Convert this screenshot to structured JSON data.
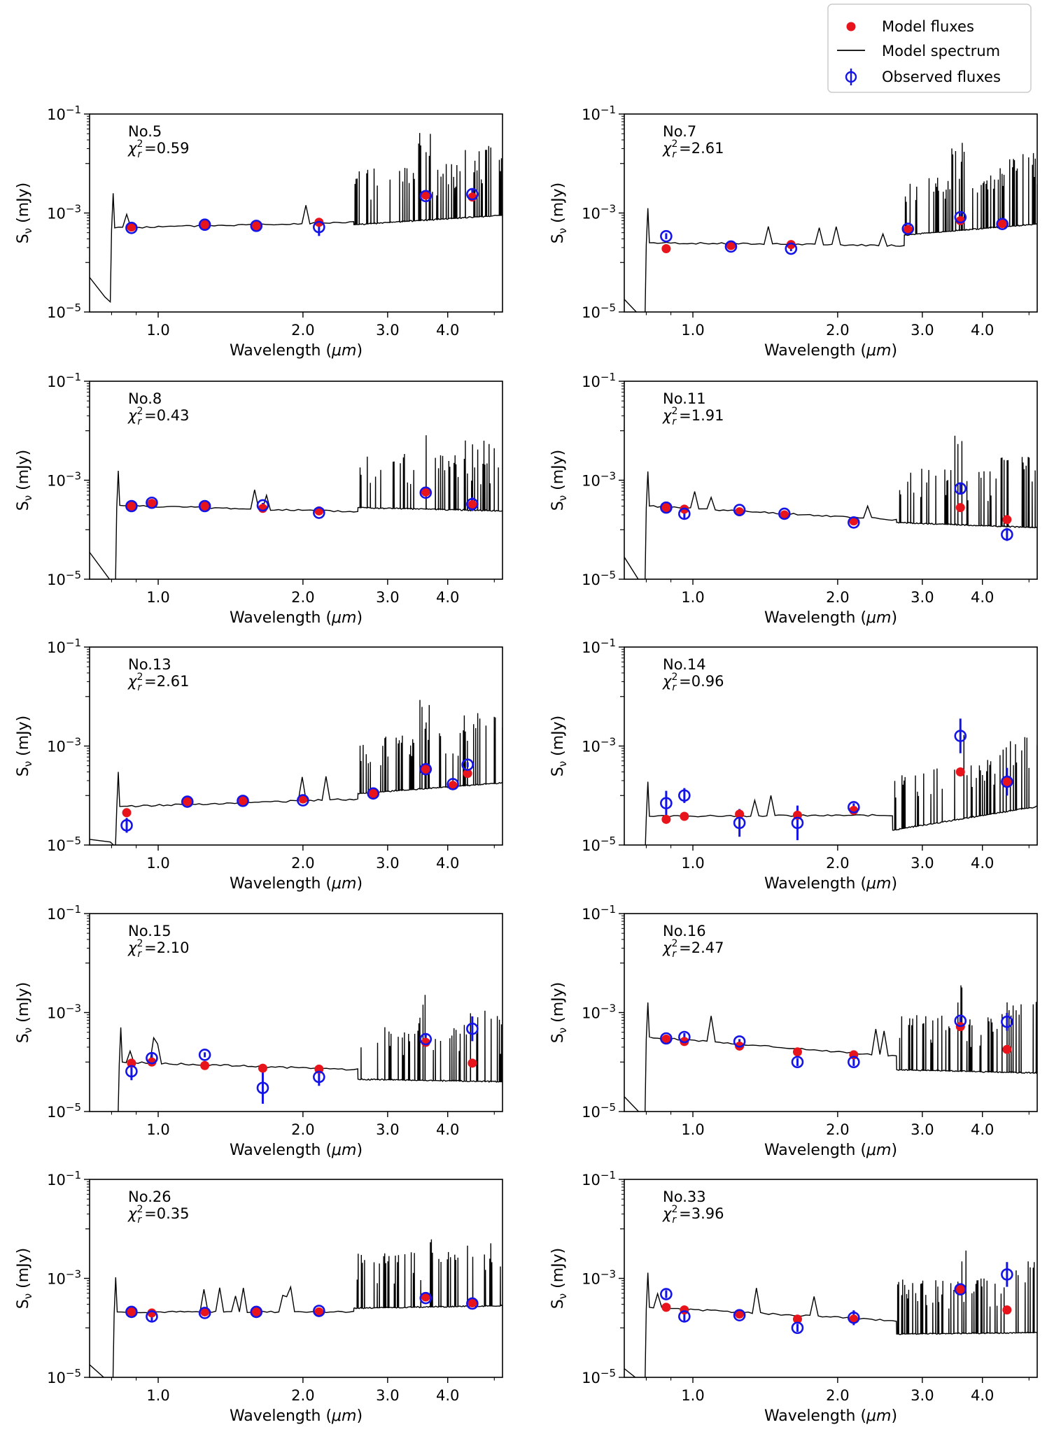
{
  "legend": {
    "entries": [
      "Model fluxes",
      "Model spectrum",
      "Observed fluxes"
    ],
    "position": "top-right"
  },
  "colors": {
    "model_flux": "#e8141c",
    "observed_flux": "#1414e6",
    "spectrum": "#000000"
  },
  "chart_data": [
    {
      "type": "scatter",
      "id": "No.5",
      "label": "No.5",
      "chi": "0.59",
      "xlabel": "Wavelength (μm)",
      "ylabel": "Sν (mJy)",
      "xscale": "log",
      "yscale": "log",
      "xlim": [
        0.72,
        5.2
      ],
      "ylim": [
        1e-05,
        0.1
      ],
      "xticks": [
        1.0,
        2.0,
        3.0,
        4.0
      ],
      "xticklabels": [
        "1.0",
        "2.0",
        "3.0",
        "4.0"
      ],
      "yticks": [
        1e-05,
        0.001,
        0.1
      ],
      "yticklabels_base": [
        "10",
        "10",
        "10"
      ],
      "yticklabels_exp": [
        "−5",
        "−3",
        "−1"
      ],
      "spectrum": {
        "break": 0.8,
        "v0": 0.0005,
        "v1": 0.00065,
        "j": 2.55,
        "v2": 0.00058,
        "v3": 0.0009,
        "tail": [
          5e-05,
          2e-05
        ],
        "spike_seed": 5
      },
      "model": [
        [
          0.88,
          0.00052
        ],
        [
          1.25,
          0.00058
        ],
        [
          1.6,
          0.00055
        ],
        [
          2.16,
          0.00065
        ],
        [
          3.6,
          0.0023
        ],
        [
          4.5,
          0.0021
        ]
      ],
      "observed": [
        [
          0.88,
          0.0005,
          0.05
        ],
        [
          1.25,
          0.00058,
          0.05
        ],
        [
          1.6,
          0.00055,
          0.05
        ],
        [
          2.16,
          0.00052,
          0.18
        ],
        [
          3.6,
          0.0022,
          0.06
        ],
        [
          4.5,
          0.0024,
          0.1
        ]
      ]
    },
    {
      "type": "scatter",
      "id": "No.7",
      "label": "No.7",
      "chi": "2.61",
      "xlabel": "Wavelength (μm)",
      "ylabel": "Sν (mJy)",
      "xscale": "log",
      "yscale": "log",
      "xlim": [
        0.72,
        5.2
      ],
      "ylim": [
        1e-05,
        0.1
      ],
      "xticks": [
        1.0,
        2.0,
        3.0,
        4.0
      ],
      "xticklabels": [
        "1.0",
        "2.0",
        "3.0",
        "4.0"
      ],
      "yticks": [
        1e-05,
        0.001,
        0.1
      ],
      "yticklabels_base": [
        "10",
        "10",
        "10"
      ],
      "yticklabels_exp": [
        "−5",
        "−3",
        "−1"
      ],
      "spectrum": {
        "break": 0.8,
        "v0": 0.00025,
        "v1": 0.00022,
        "j": 2.75,
        "v2": 0.00036,
        "v3": 0.0006,
        "tail": [
          1.8e-05,
          8.5e-06
        ],
        "spike_seed": 7
      },
      "model": [
        [
          0.88,
          0.00019
        ],
        [
          1.2,
          0.00022
        ],
        [
          1.6,
          0.00023
        ],
        [
          2.8,
          0.00046
        ],
        [
          3.6,
          0.0007
        ],
        [
          4.4,
          0.00061
        ]
      ],
      "observed": [
        [
          0.88,
          0.00034,
          0.06
        ],
        [
          1.2,
          0.00021,
          0.05
        ],
        [
          1.6,
          0.00019,
          0.05
        ],
        [
          2.8,
          0.00048,
          0.08
        ],
        [
          3.6,
          0.00082,
          0.08
        ],
        [
          4.4,
          0.0006,
          0.05
        ]
      ]
    },
    {
      "type": "scatter",
      "id": "No.8",
      "label": "No.8",
      "chi": "0.43",
      "xlabel": "Wavelength (μm)",
      "ylabel": "Sν (mJy)",
      "xscale": "log",
      "yscale": "log",
      "xlim": [
        0.72,
        5.2
      ],
      "ylim": [
        1e-05,
        0.1
      ],
      "xticks": [
        1.0,
        2.0,
        3.0,
        4.0
      ],
      "xticklabels": [
        "1.0",
        "2.0",
        "3.0",
        "4.0"
      ],
      "yticks": [
        1e-05,
        0.001,
        0.1
      ],
      "yticklabels_base": [
        "10",
        "10",
        "10"
      ],
      "yticklabels_exp": [
        "−5",
        "−3",
        "−1"
      ],
      "spectrum": {
        "break": 0.82,
        "v0": 0.00031,
        "v1": 0.00023,
        "j": 2.6,
        "v2": 0.00028,
        "v3": 0.00024,
        "tail": [
          3.5e-05,
          9.5e-06
        ],
        "spike_seed": 8
      },
      "model": [
        [
          0.88,
          0.0003
        ],
        [
          0.97,
          0.00034
        ],
        [
          1.25,
          0.0003
        ],
        [
          1.65,
          0.00027
        ],
        [
          2.16,
          0.00024
        ],
        [
          3.6,
          0.00058
        ],
        [
          4.5,
          0.00032
        ]
      ],
      "observed": [
        [
          0.88,
          0.0003,
          0.05
        ],
        [
          0.97,
          0.00035,
          0.05
        ],
        [
          1.25,
          0.0003,
          0.05
        ],
        [
          1.65,
          0.00031,
          0.05
        ],
        [
          2.16,
          0.00022,
          0.05
        ],
        [
          3.6,
          0.00056,
          0.05
        ],
        [
          4.5,
          0.00033,
          0.14
        ]
      ]
    },
    {
      "type": "scatter",
      "id": "No.11",
      "label": "No.11",
      "chi": "1.91",
      "xlabel": "Wavelength (μm)",
      "ylabel": "Sν (mJy)",
      "xscale": "log",
      "yscale": "log",
      "xlim": [
        0.72,
        5.2
      ],
      "ylim": [
        1e-05,
        0.1
      ],
      "xticks": [
        1.0,
        2.0,
        3.0,
        4.0
      ],
      "xticklabels": [
        "1.0",
        "2.0",
        "3.0",
        "4.0"
      ],
      "yticks": [
        1e-05,
        0.001,
        0.1
      ],
      "yticklabels_base": [
        "10",
        "10",
        "10"
      ],
      "yticklabels_exp": [
        "−5",
        "−3",
        "−1"
      ],
      "spectrum": {
        "break": 0.8,
        "v0": 0.0003,
        "v1": 0.00016,
        "j": 2.65,
        "v2": 0.00014,
        "v3": 0.00011,
        "tail": [
          2.8e-05,
          9e-06
        ],
        "spike_seed": 11
      },
      "model": [
        [
          0.88,
          0.00028
        ],
        [
          0.96,
          0.00026
        ],
        [
          1.25,
          0.00023
        ],
        [
          1.55,
          0.0002
        ],
        [
          2.16,
          0.00015
        ],
        [
          3.6,
          0.00028
        ],
        [
          4.5,
          0.00016
        ]
      ],
      "observed": [
        [
          0.88,
          0.00028,
          0.05
        ],
        [
          0.96,
          0.00021,
          0.12
        ],
        [
          1.25,
          0.00025,
          0.05
        ],
        [
          1.55,
          0.00021,
          0.05
        ],
        [
          2.16,
          0.00014,
          0.05
        ],
        [
          3.6,
          0.00068,
          0.1
        ],
        [
          4.5,
          8e-05,
          0.13
        ]
      ]
    },
    {
      "type": "scatter",
      "id": "No.13",
      "label": "No.13",
      "chi": "2.61",
      "xlabel": "Wavelength (μm)",
      "ylabel": "Sν (mJy)",
      "xscale": "log",
      "yscale": "log",
      "xlim": [
        0.72,
        5.2
      ],
      "ylim": [
        1e-05,
        0.1
      ],
      "xticks": [
        1.0,
        2.0,
        3.0,
        4.0
      ],
      "xticklabels": [
        "1.0",
        "2.0",
        "3.0",
        "4.0"
      ],
      "yticks": [
        1e-05,
        0.001,
        0.1
      ],
      "yticklabels_base": [
        "10",
        "10",
        "10"
      ],
      "yticklabels_exp": [
        "−5",
        "−3",
        "−1"
      ],
      "spectrum": {
        "break": 0.82,
        "v0": 6e-05,
        "v1": 8.5e-05,
        "j": 2.6,
        "v2": 0.00011,
        "v3": 0.00018,
        "tail": [
          1.3e-05,
          1.15e-05
        ],
        "spike_seed": 13
      },
      "model": [
        [
          0.86,
          4.5e-05
        ],
        [
          1.15,
          7.5e-05
        ],
        [
          1.5,
          7.8e-05
        ],
        [
          2.0,
          8.5e-05
        ],
        [
          2.8,
          0.00011
        ],
        [
          3.6,
          0.00034
        ],
        [
          4.1,
          0.00016
        ],
        [
          4.4,
          0.00028
        ]
      ],
      "observed": [
        [
          0.86,
          2.5e-05,
          0.15
        ],
        [
          1.15,
          7.5e-05,
          0.05
        ],
        [
          1.5,
          7.8e-05,
          0.05
        ],
        [
          2.0,
          8e-05,
          0.05
        ],
        [
          2.8,
          0.00011,
          0.05
        ],
        [
          3.6,
          0.00034,
          0.05
        ],
        [
          4.1,
          0.00017,
          0.05
        ],
        [
          4.4,
          0.00042,
          0.05
        ]
      ]
    },
    {
      "type": "scatter",
      "id": "No.14",
      "label": "No.14",
      "chi": "0.96",
      "xlabel": "Wavelength (μm)",
      "ylabel": "Sν (mJy)",
      "xscale": "log",
      "yscale": "log",
      "xlim": [
        0.72,
        5.2
      ],
      "ylim": [
        1e-05,
        0.1
      ],
      "xticks": [
        1.0,
        2.0,
        3.0,
        4.0
      ],
      "xticklabels": [
        "1.0",
        "2.0",
        "3.0",
        "4.0"
      ],
      "yticks": [
        1e-05,
        0.001,
        0.1
      ],
      "yticklabels_base": [
        "10",
        "10",
        "10"
      ],
      "yticklabels_exp": [
        "−5",
        "−3",
        "−1"
      ],
      "spectrum": {
        "break": 0.8,
        "v0": 3.8e-05,
        "v1": 4e-05,
        "j": 2.6,
        "v2": 2e-05,
        "v3": 6e-05,
        "tail": [
          8e-06,
          7e-06
        ],
        "spike_seed": 14
      },
      "model": [
        [
          0.88,
          3.3e-05
        ],
        [
          0.96,
          3.8e-05
        ],
        [
          1.25,
          4.2e-05
        ],
        [
          1.65,
          4e-05
        ],
        [
          2.16,
          5e-05
        ],
        [
          3.6,
          0.0003
        ],
        [
          4.5,
          0.00019
        ]
      ],
      "observed": [
        [
          0.88,
          7e-05,
          0.25
        ],
        [
          0.96,
          0.0001,
          0.15
        ],
        [
          1.25,
          2.8e-05,
          0.28
        ],
        [
          1.65,
          2.8e-05,
          0.35
        ],
        [
          2.16,
          5.8e-05,
          0.08
        ],
        [
          3.6,
          0.0016,
          0.35
        ],
        [
          4.5,
          0.00019,
          0.28
        ]
      ]
    },
    {
      "type": "scatter",
      "id": "No.15",
      "label": "No.15",
      "chi": "2.10",
      "xlabel": "Wavelength (μm)",
      "ylabel": "Sν (mJy)",
      "xscale": "log",
      "yscale": "log",
      "xlim": [
        0.72,
        5.2
      ],
      "ylim": [
        1e-05,
        0.1
      ],
      "xticks": [
        1.0,
        2.0,
        3.0,
        4.0
      ],
      "xticklabels": [
        "1.0",
        "2.0",
        "3.0",
        "4.0"
      ],
      "yticks": [
        1e-05,
        0.001,
        0.1
      ],
      "yticklabels_base": [
        "10",
        "10",
        "10"
      ],
      "yticklabels_exp": [
        "−5",
        "−3",
        "−1"
      ],
      "spectrum": {
        "break": 0.83,
        "v0": 0.0001,
        "v1": 7e-05,
        "j": 2.6,
        "v2": 4.5e-05,
        "v3": 4e-05,
        "tail": [
          9e-06,
          8.5e-06
        ],
        "spike_seed": 15
      },
      "model": [
        [
          0.88,
          9.5e-05
        ],
        [
          0.97,
          0.0001
        ],
        [
          1.25,
          8.5e-05
        ],
        [
          1.65,
          7.5e-05
        ],
        [
          2.16,
          7.2e-05
        ],
        [
          3.6,
          0.00025
        ],
        [
          4.5,
          9.5e-05
        ]
      ],
      "observed": [
        [
          0.88,
          6.5e-05,
          0.18
        ],
        [
          0.97,
          0.00012,
          0.12
        ],
        [
          1.25,
          0.00014,
          0.05
        ],
        [
          1.65,
          3e-05,
          0.32
        ],
        [
          2.16,
          5e-05,
          0.18
        ],
        [
          3.6,
          0.00029,
          0.1
        ],
        [
          4.5,
          0.00047,
          0.25
        ]
      ]
    },
    {
      "type": "scatter",
      "id": "No.16",
      "label": "No.16",
      "chi": "2.47",
      "xlabel": "Wavelength (μm)",
      "ylabel": "Sν (mJy)",
      "xscale": "log",
      "yscale": "log",
      "xlim": [
        0.72,
        5.2
      ],
      "ylim": [
        1e-05,
        0.1
      ],
      "xticks": [
        1.0,
        2.0,
        3.0,
        4.0
      ],
      "xticklabels": [
        "1.0",
        "2.0",
        "3.0",
        "4.0"
      ],
      "yticks": [
        1e-05,
        0.001,
        0.1
      ],
      "yticklabels_base": [
        "10",
        "10",
        "10"
      ],
      "yticklabels_exp": [
        "−5",
        "−3",
        "−1"
      ],
      "spectrum": {
        "break": 0.8,
        "v0": 0.00032,
        "v1": 0.00013,
        "j": 2.65,
        "v2": 7e-05,
        "v3": 6e-05,
        "tail": [
          2e-05,
          9.5e-06
        ],
        "spike_seed": 16
      },
      "model": [
        [
          0.88,
          0.00029
        ],
        [
          0.96,
          0.00026
        ],
        [
          1.25,
          0.00021
        ],
        [
          1.65,
          0.00016
        ],
        [
          2.16,
          0.00014
        ],
        [
          3.6,
          0.00052
        ],
        [
          4.5,
          0.00018
        ]
      ],
      "observed": [
        [
          0.88,
          0.0003,
          0.05
        ],
        [
          0.96,
          0.00032,
          0.08
        ],
        [
          1.25,
          0.00026,
          0.05
        ],
        [
          1.65,
          0.0001,
          0.08
        ],
        [
          2.16,
          0.0001,
          0.08
        ],
        [
          3.6,
          0.00068,
          0.08
        ],
        [
          4.5,
          0.00065,
          0.18
        ]
      ]
    },
    {
      "type": "scatter",
      "id": "No.26",
      "label": "No.26",
      "chi": "0.35",
      "xlabel": "Wavelength (μm)",
      "ylabel": "Sν (mJy)",
      "xscale": "log",
      "yscale": "log",
      "xlim": [
        0.72,
        5.2
      ],
      "ylim": [
        1e-05,
        0.1
      ],
      "xticks": [
        1.0,
        2.0,
        3.0,
        4.0
      ],
      "xticklabels": [
        "1.0",
        "2.0",
        "3.0",
        "4.0"
      ],
      "yticks": [
        1e-05,
        0.001,
        0.1
      ],
      "yticklabels_base": [
        "10",
        "10",
        "10"
      ],
      "yticklabels_exp": [
        "−5",
        "−3",
        "−1"
      ],
      "spectrum": {
        "break": 0.81,
        "v0": 0.00021,
        "v1": 0.00021,
        "j": 2.55,
        "v2": 0.00025,
        "v3": 0.00028,
        "tail": [
          1.8e-05,
          8.5e-06
        ],
        "spike_seed": 26
      },
      "model": [
        [
          0.88,
          0.00021
        ],
        [
          0.97,
          0.0002
        ],
        [
          1.25,
          0.00021
        ],
        [
          1.6,
          0.00021
        ],
        [
          2.16,
          0.00021
        ],
        [
          3.6,
          0.00042
        ],
        [
          4.5,
          0.00032
        ]
      ],
      "observed": [
        [
          0.88,
          0.00021,
          0.05
        ],
        [
          0.97,
          0.00017,
          0.1
        ],
        [
          1.25,
          0.0002,
          0.05
        ],
        [
          1.6,
          0.00021,
          0.05
        ],
        [
          2.16,
          0.00022,
          0.05
        ],
        [
          3.6,
          0.0004,
          0.05
        ],
        [
          4.5,
          0.00031,
          0.05
        ]
      ]
    },
    {
      "type": "scatter",
      "id": "No.33",
      "label": "No.33",
      "chi": "3.96",
      "xlabel": "Wavelength (μm)",
      "ylabel": "Sν (mJy)",
      "xscale": "log",
      "yscale": "log",
      "xlim": [
        0.72,
        5.2
      ],
      "ylim": [
        1e-05,
        0.1
      ],
      "xticks": [
        1.0,
        2.0,
        3.0,
        4.0
      ],
      "xticklabels": [
        "1.0",
        "2.0",
        "3.0",
        "4.0"
      ],
      "yticks": [
        1e-05,
        0.001,
        0.1
      ],
      "yticklabels_base": [
        "10",
        "10",
        "10"
      ],
      "yticklabels_exp": [
        "−5",
        "−3",
        "−1"
      ],
      "spectrum": {
        "break": 0.8,
        "v0": 0.00026,
        "v1": 0.00014,
        "j": 2.65,
        "v2": 7.5e-05,
        "v3": 8e-05,
        "tail": [
          1.5e-05,
          8.5e-06
        ],
        "spike_seed": 33
      },
      "model": [
        [
          0.88,
          0.00026
        ],
        [
          0.96,
          0.00023
        ],
        [
          1.25,
          0.00019
        ],
        [
          1.65,
          0.00015
        ],
        [
          2.16,
          0.00015
        ],
        [
          3.6,
          0.0006
        ],
        [
          4.5,
          0.00023
        ]
      ],
      "observed": [
        [
          0.88,
          0.00048,
          0.08
        ],
        [
          0.96,
          0.00017,
          0.12
        ],
        [
          1.25,
          0.00018,
          0.05
        ],
        [
          1.65,
          0.0001,
          0.08
        ],
        [
          2.16,
          0.00016,
          0.15
        ],
        [
          3.6,
          0.0006,
          0.05
        ],
        [
          4.5,
          0.0012,
          0.25
        ]
      ]
    }
  ]
}
